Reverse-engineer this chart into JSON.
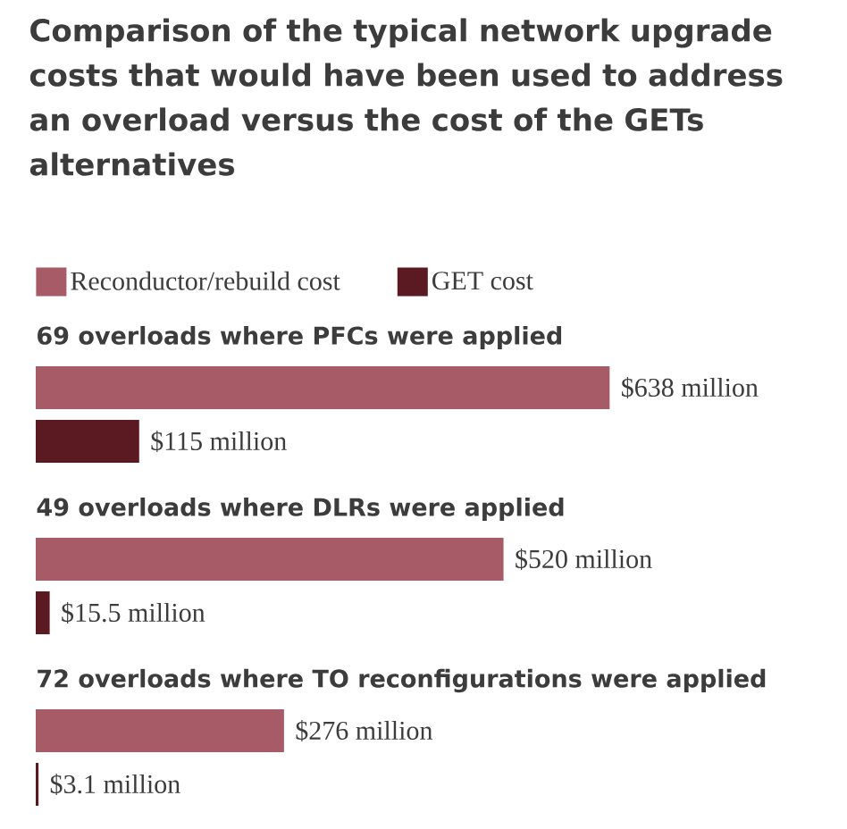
{
  "chart_data": {
    "type": "bar",
    "orientation": "horizontal",
    "title": "Comparison of the typical network upgrade costs that would have been used to address an overload versus the cost of the GETs alternatives",
    "categories": [
      "69 overloads where PFCs were applied",
      "49 overloads where DLRs were applied",
      "72 overloads where TO reconfigurations were applied"
    ],
    "series": [
      {
        "name": "Reconductor/rebuild cost",
        "color": "#a65b67",
        "values": [
          638,
          520,
          276
        ],
        "value_labels": [
          "$638 million",
          "$520 million",
          "$276 million"
        ]
      },
      {
        "name": "GET cost",
        "color": "#5b1a22",
        "values": [
          115,
          15.5,
          3.1
        ],
        "value_labels": [
          "$115 million",
          "$15.5 million",
          "$3.1 million"
        ]
      }
    ],
    "legend": "top left",
    "tick_labels": false
  }
}
